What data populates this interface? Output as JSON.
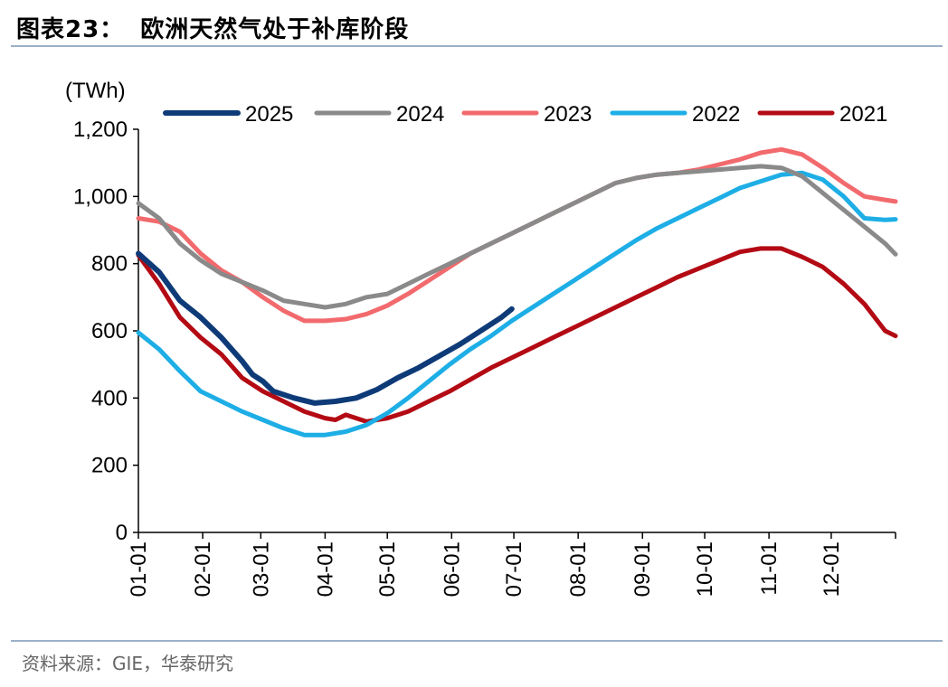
{
  "header": {
    "figure_label": "图表23：",
    "title": "欧洲天然气处于补库阶段"
  },
  "footer": {
    "source": "资料来源：GIE，华泰研究"
  },
  "chart_data": {
    "type": "line",
    "ylabel": "(TWh)",
    "ylim": [
      0,
      1200
    ],
    "yticks": [
      0,
      200,
      400,
      600,
      800,
      1000,
      1200
    ],
    "ytick_labels": [
      "0",
      "200",
      "400",
      "600",
      "800",
      "1,000",
      "1,200"
    ],
    "xlim": [
      0,
      365
    ],
    "xticks": [
      0,
      31,
      59,
      90,
      120,
      151,
      181,
      212,
      243,
      273,
      304,
      334
    ],
    "xtick_labels": [
      "01-01",
      "02-01",
      "03-01",
      "04-01",
      "05-01",
      "06-01",
      "07-01",
      "08-01",
      "09-01",
      "10-01",
      "11-01",
      "12-01"
    ],
    "grid": false,
    "legend_position": "top",
    "colors": {
      "2025": "#0e3b78",
      "2024": "#8a8a8a",
      "2023": "#f26a6d",
      "2022": "#1eaee6",
      "2021": "#b30a14"
    },
    "series": [
      {
        "name": "2025",
        "x": [
          0,
          10,
          20,
          30,
          40,
          50,
          55,
          60,
          65,
          75,
          85,
          95,
          105,
          115,
          125,
          135,
          145,
          155,
          165,
          175,
          180
        ],
        "values": [
          830,
          775,
          690,
          640,
          580,
          510,
          470,
          450,
          420,
          400,
          385,
          390,
          400,
          425,
          460,
          490,
          525,
          560,
          600,
          640,
          665
        ]
      },
      {
        "name": "2024",
        "x": [
          0,
          10,
          20,
          30,
          40,
          50,
          60,
          70,
          80,
          90,
          100,
          110,
          120,
          130,
          140,
          150,
          160,
          170,
          180,
          190,
          200,
          210,
          220,
          230,
          240,
          250,
          260,
          270,
          280,
          290,
          300,
          310,
          320,
          330,
          340,
          350,
          360,
          365
        ],
        "values": [
          980,
          935,
          860,
          810,
          770,
          745,
          720,
          690,
          680,
          670,
          680,
          700,
          710,
          740,
          770,
          800,
          830,
          860,
          890,
          920,
          950,
          980,
          1010,
          1040,
          1055,
          1065,
          1070,
          1075,
          1080,
          1085,
          1090,
          1085,
          1060,
          1010,
          960,
          910,
          860,
          828
        ]
      },
      {
        "name": "2023",
        "x": [
          0,
          10,
          20,
          30,
          40,
          50,
          60,
          70,
          80,
          90,
          100,
          110,
          120,
          130,
          140,
          150,
          160,
          170,
          180,
          190,
          200,
          210,
          220,
          230,
          240,
          250,
          260,
          270,
          280,
          290,
          300,
          310,
          320,
          330,
          340,
          350,
          360,
          365
        ],
        "values": [
          935,
          925,
          895,
          830,
          780,
          745,
          700,
          660,
          630,
          630,
          635,
          650,
          675,
          710,
          750,
          790,
          830,
          860,
          890,
          920,
          950,
          980,
          1010,
          1040,
          1055,
          1065,
          1070,
          1080,
          1095,
          1110,
          1130,
          1140,
          1125,
          1085,
          1040,
          1000,
          990,
          985
        ]
      },
      {
        "name": "2022",
        "x": [
          0,
          10,
          20,
          30,
          40,
          50,
          60,
          70,
          80,
          90,
          100,
          110,
          120,
          130,
          140,
          150,
          160,
          170,
          180,
          190,
          200,
          210,
          220,
          230,
          240,
          250,
          260,
          270,
          280,
          290,
          300,
          310,
          320,
          330,
          340,
          350,
          360,
          365
        ],
        "values": [
          595,
          545,
          480,
          420,
          390,
          360,
          335,
          310,
          290,
          290,
          300,
          320,
          355,
          400,
          450,
          500,
          545,
          585,
          630,
          670,
          710,
          750,
          790,
          830,
          870,
          905,
          935,
          965,
          995,
          1025,
          1045,
          1065,
          1070,
          1050,
          1000,
          935,
          930,
          932
        ]
      },
      {
        "name": "2021",
        "x": [
          0,
          10,
          20,
          30,
          40,
          50,
          60,
          70,
          80,
          90,
          95,
          100,
          110,
          120,
          130,
          140,
          150,
          160,
          170,
          180,
          190,
          200,
          210,
          220,
          230,
          240,
          250,
          260,
          270,
          280,
          290,
          300,
          310,
          320,
          330,
          340,
          350,
          360,
          365
        ],
        "values": [
          825,
          740,
          640,
          580,
          530,
          460,
          420,
          390,
          360,
          340,
          335,
          350,
          330,
          340,
          360,
          390,
          420,
          455,
          490,
          520,
          550,
          580,
          610,
          640,
          670,
          700,
          730,
          760,
          785,
          810,
          835,
          845,
          845,
          820,
          790,
          740,
          680,
          600,
          585
        ]
      }
    ]
  }
}
